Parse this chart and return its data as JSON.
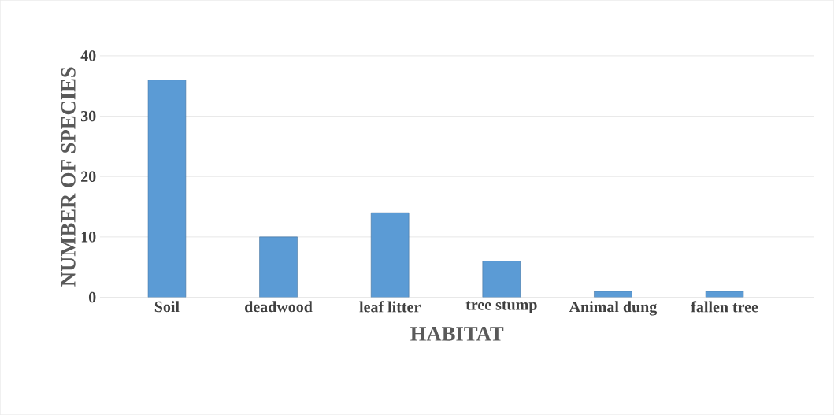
{
  "chart_data": {
    "type": "bar",
    "xlabel": "HABITAT",
    "ylabel": "NUMBER OF SPECIES",
    "categories": [
      "Soil",
      "deadwood",
      "leaf litter",
      "tree stump",
      "Animal dung",
      "fallen tree"
    ],
    "values": [
      36,
      10,
      14,
      6,
      1,
      1
    ],
    "color": "#5b9bd5",
    "ylim": [
      0,
      40
    ],
    "yticks": [
      0,
      10,
      20,
      30,
      40
    ],
    "grid": "y"
  }
}
